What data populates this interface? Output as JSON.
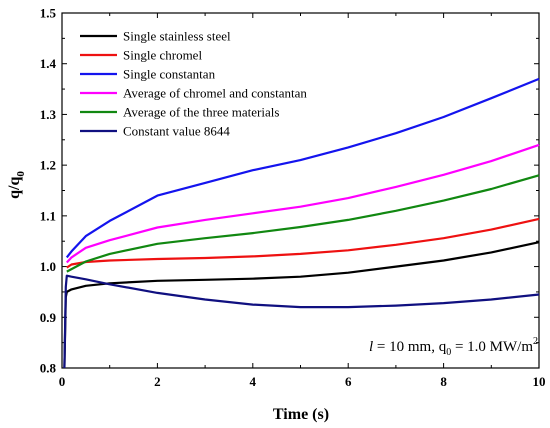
{
  "chart_data": {
    "type": "line",
    "xlabel": "Time (s)",
    "ylabel_main": "q/q",
    "ylabel_sub": "0",
    "xlim": [
      0,
      10
    ],
    "ylim": [
      0.8,
      1.5
    ],
    "x_ticks": [
      "0",
      "2",
      "4",
      "6",
      "8",
      "10"
    ],
    "y_ticks": [
      "0.8",
      "0.9",
      "1.0",
      "1.1",
      "1.2",
      "1.3",
      "1.4",
      "1.5"
    ],
    "grid": false,
    "legend_position": "top-left",
    "annotation": {
      "italic_l": "l",
      "part1": " = 10 mm, q",
      "sub0": "0",
      "part2": " = 1.0 MW/m",
      "sup2": "2"
    },
    "series": [
      {
        "name": "Single stainless steel",
        "color": "#000000",
        "x": [
          0.05,
          0.08,
          0.1,
          0.2,
          0.5,
          1,
          2,
          3,
          4,
          5,
          6,
          7,
          8,
          9,
          10
        ],
        "y": [
          0.8,
          0.94,
          0.95,
          0.955,
          0.962,
          0.967,
          0.972,
          0.974,
          0.976,
          0.98,
          0.988,
          1.0,
          1.012,
          1.028,
          1.048
        ]
      },
      {
        "name": "Single chromel",
        "color": "#ee1111",
        "x": [
          0.1,
          0.2,
          0.5,
          1,
          2,
          3,
          4,
          5,
          6,
          7,
          8,
          9,
          10
        ],
        "y": [
          0.998,
          1.004,
          1.009,
          1.012,
          1.015,
          1.017,
          1.02,
          1.025,
          1.032,
          1.043,
          1.056,
          1.073,
          1.094
        ]
      },
      {
        "name": "Single constantan",
        "color": "#1414ee",
        "x": [
          0.1,
          0.2,
          0.5,
          1,
          2,
          3,
          4,
          5,
          6,
          7,
          8,
          9,
          10
        ],
        "y": [
          1.018,
          1.03,
          1.06,
          1.09,
          1.14,
          1.165,
          1.19,
          1.21,
          1.235,
          1.263,
          1.295,
          1.332,
          1.37
        ]
      },
      {
        "name": "Average of chromel and constantan",
        "color": "#ff00ff",
        "x": [
          0.1,
          0.2,
          0.5,
          1,
          2,
          3,
          4,
          5,
          6,
          7,
          8,
          9,
          10
        ],
        "y": [
          1.008,
          1.018,
          1.037,
          1.052,
          1.077,
          1.092,
          1.105,
          1.118,
          1.135,
          1.157,
          1.181,
          1.208,
          1.24
        ]
      },
      {
        "name": "Average of the three materials",
        "color": "#118811",
        "x": [
          0.1,
          0.2,
          0.5,
          1,
          2,
          3,
          4,
          5,
          6,
          7,
          8,
          9,
          10
        ],
        "y": [
          0.99,
          0.995,
          1.01,
          1.025,
          1.045,
          1.056,
          1.066,
          1.078,
          1.092,
          1.11,
          1.13,
          1.153,
          1.18
        ]
      },
      {
        "name": "Constant  value 8644",
        "color": "#101080",
        "x": [
          0.05,
          0.08,
          0.1,
          0.2,
          0.5,
          1,
          2,
          3,
          4,
          5,
          6,
          7,
          8,
          9,
          10
        ],
        "y": [
          0.8,
          0.96,
          0.982,
          0.98,
          0.975,
          0.965,
          0.948,
          0.935,
          0.925,
          0.92,
          0.92,
          0.923,
          0.928,
          0.935,
          0.945
        ]
      }
    ]
  }
}
